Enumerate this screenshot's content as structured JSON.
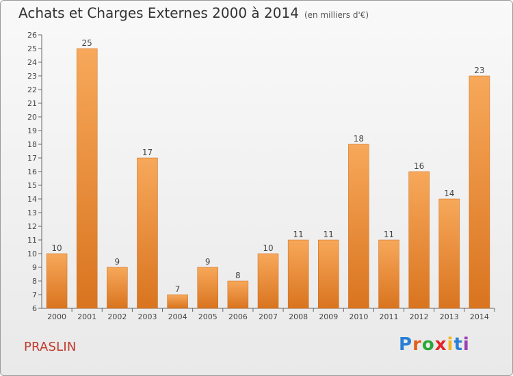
{
  "title": "Achats et Charges Externes 2000 à 2014",
  "unit_label": "(en milliers d'€)",
  "place": "PRASLIN",
  "brand": {
    "letters": [
      {
        "char": "P",
        "color": "#2a7fd4"
      },
      {
        "char": "r",
        "color": "#e0601b"
      },
      {
        "char": "o",
        "color": "#2aa63a"
      },
      {
        "char": "x",
        "color": "#e3262a"
      },
      {
        "char": "i",
        "color": "#f2b51c"
      },
      {
        "char": "t",
        "color": "#2a7fd4"
      },
      {
        "char": "i",
        "color": "#9b3fb5"
      }
    ]
  },
  "chart_data": {
    "type": "bar",
    "categories": [
      "2000",
      "2001",
      "2002",
      "2003",
      "2004",
      "2005",
      "2006",
      "2007",
      "2008",
      "2009",
      "2010",
      "2011",
      "2012",
      "2013",
      "2014"
    ],
    "values": [
      10,
      25,
      9,
      17,
      7,
      9,
      8,
      10,
      11,
      11,
      18,
      11,
      16,
      14,
      23
    ],
    "ylim": [
      6,
      26
    ],
    "yticks": [
      6,
      7,
      8,
      9,
      10,
      11,
      12,
      13,
      14,
      15,
      16,
      17,
      18,
      19,
      20,
      21,
      22,
      23,
      24,
      25,
      26
    ],
    "grid": false,
    "bar_color_top": "#f7a85a",
    "bar_color_bottom": "#d9741f",
    "axis_color": "#666666"
  }
}
